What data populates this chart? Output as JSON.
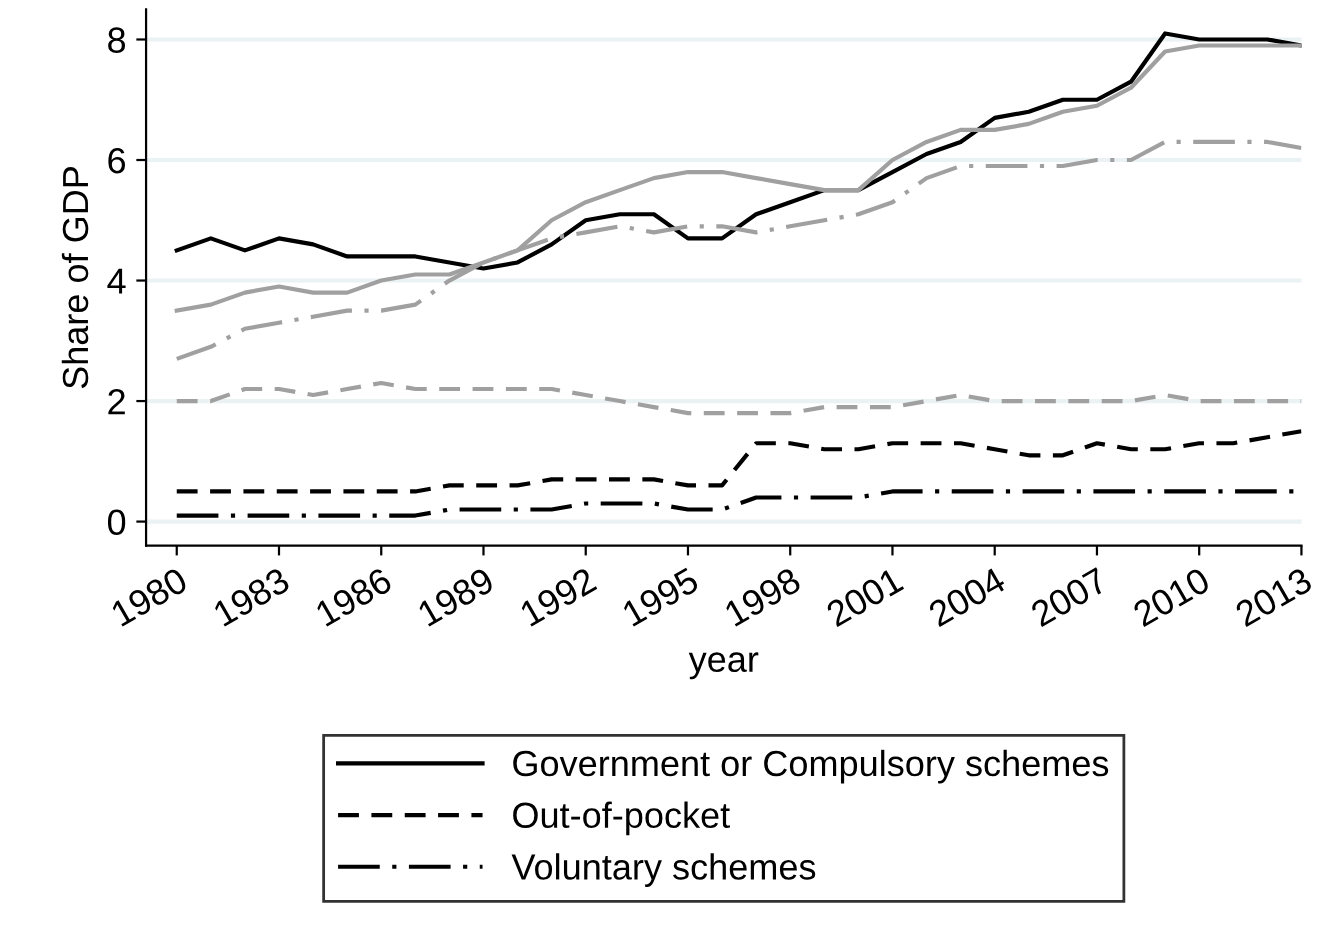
{
  "chart_data": {
    "type": "line",
    "xlabel": "year",
    "ylabel": "Share of GDP",
    "x": [
      1980,
      1981,
      1982,
      1983,
      1984,
      1985,
      1986,
      1987,
      1988,
      1989,
      1990,
      1991,
      1992,
      1993,
      1994,
      1995,
      1996,
      1997,
      1998,
      1999,
      2000,
      2001,
      2002,
      2003,
      2004,
      2005,
      2006,
      2007,
      2008,
      2009,
      2010,
      2011,
      2012,
      2013
    ],
    "series": [
      {
        "name": "Government or Compulsory schemes",
        "color": "#000000",
        "line_style": "solid",
        "values": [
          4.5,
          4.7,
          4.5,
          4.7,
          4.6,
          4.4,
          4.4,
          4.4,
          4.3,
          4.2,
          4.3,
          4.6,
          5.0,
          5.1,
          5.1,
          4.7,
          4.7,
          5.1,
          5.3,
          5.5,
          5.5,
          5.8,
          6.1,
          6.3,
          6.7,
          6.8,
          7.0,
          7.0,
          7.3,
          8.1,
          8.0,
          8.0,
          8.0,
          7.9
        ]
      },
      {
        "name": "Out-of-pocket",
        "color": "#000000",
        "line_style": "dashed",
        "values": [
          0.5,
          0.5,
          0.5,
          0.5,
          0.5,
          0.5,
          0.5,
          0.5,
          0.6,
          0.6,
          0.6,
          0.7,
          0.7,
          0.7,
          0.7,
          0.6,
          0.6,
          1.3,
          1.3,
          1.2,
          1.2,
          1.3,
          1.3,
          1.3,
          1.2,
          1.1,
          1.1,
          1.3,
          1.2,
          1.2,
          1.3,
          1.3,
          1.4,
          1.5
        ]
      },
      {
        "name": "Voluntary schemes",
        "color": "#000000",
        "line_style": "dashdot",
        "values": [
          0.1,
          0.1,
          0.1,
          0.1,
          0.1,
          0.1,
          0.1,
          0.1,
          0.2,
          0.2,
          0.2,
          0.2,
          0.3,
          0.3,
          0.3,
          0.2,
          0.2,
          0.4,
          0.4,
          0.4,
          0.4,
          0.5,
          0.5,
          0.5,
          0.5,
          0.5,
          0.5,
          0.5,
          0.5,
          0.5,
          0.5,
          0.5,
          0.5,
          0.5
        ]
      },
      {
        "color": "#a0a0a0",
        "line_style": "solid",
        "values": [
          3.5,
          3.6,
          3.8,
          3.9,
          3.8,
          3.8,
          4.0,
          4.1,
          4.1,
          4.3,
          4.5,
          5.0,
          5.3,
          5.5,
          5.7,
          5.8,
          5.8,
          5.7,
          5.6,
          5.5,
          5.5,
          6.0,
          6.3,
          6.5,
          6.5,
          6.6,
          6.8,
          6.9,
          7.2,
          7.8,
          7.9,
          7.9,
          7.9,
          7.9
        ]
      },
      {
        "color": "#a0a0a0",
        "line_style": "dashed",
        "values": [
          2.0,
          2.0,
          2.2,
          2.2,
          2.1,
          2.2,
          2.3,
          2.2,
          2.2,
          2.2,
          2.2,
          2.2,
          2.1,
          2.0,
          1.9,
          1.8,
          1.8,
          1.8,
          1.8,
          1.9,
          1.9,
          1.9,
          2.0,
          2.1,
          2.0,
          2.0,
          2.0,
          2.0,
          2.0,
          2.1,
          2.0,
          2.0,
          2.0,
          2.0
        ]
      },
      {
        "color": "#a0a0a0",
        "line_style": "dashdot",
        "values": [
          2.7,
          2.9,
          3.2,
          3.3,
          3.4,
          3.5,
          3.5,
          3.6,
          4.0,
          4.3,
          4.5,
          4.7,
          4.8,
          4.9,
          4.8,
          4.9,
          4.9,
          4.8,
          4.9,
          5.0,
          5.1,
          5.3,
          5.7,
          5.9,
          5.9,
          5.9,
          5.9,
          6.0,
          6.0,
          6.3,
          6.3,
          6.3,
          6.3,
          6.2
        ]
      }
    ],
    "xlim": [
      1979.1,
      2013
    ],
    "xticks": [
      1980,
      1983,
      1986,
      1989,
      1992,
      1995,
      1998,
      2001,
      2004,
      2007,
      2010,
      2013
    ],
    "ylim": [
      -0.4,
      8.5
    ],
    "yticks": [
      0,
      2,
      4,
      6,
      8
    ],
    "grid": "y",
    "legend": "bottom"
  }
}
